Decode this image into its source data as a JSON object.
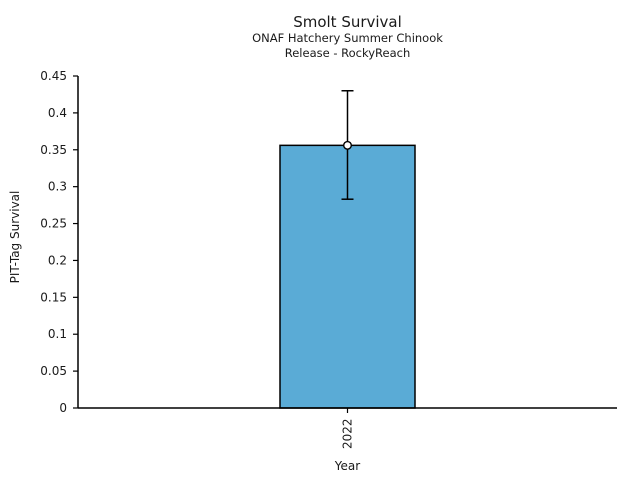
{
  "figure": {
    "background_color": "#ffffff",
    "text_color": "#1a1a1a"
  },
  "chart_data": {
    "type": "bar",
    "title": "Smolt Survival",
    "subtitle_lines": [
      "ONAF Hatchery Summer Chinook",
      "Release - RockyReach"
    ],
    "xlabel": "Year",
    "ylabel": "PIT-Tag Survival",
    "categories": [
      "2022"
    ],
    "values": [
      0.356
    ],
    "error_low": [
      0.283
    ],
    "error_high": [
      0.43
    ],
    "ylim": [
      0,
      0.45
    ],
    "yticks": [
      0,
      0.05,
      0.1,
      0.15,
      0.2,
      0.25,
      0.3,
      0.35,
      0.4,
      0.45
    ],
    "ytick_labels": [
      "0",
      "0.05",
      "0.1",
      "0.15",
      "0.2",
      "0.25",
      "0.3",
      "0.35",
      "0.4",
      "0.45"
    ],
    "xtick_rotation_deg": 90,
    "bar_color": "#5aabd6",
    "bar_edge_color": "#000000",
    "errorbar_color": "#000000",
    "marker": "open-circle",
    "marker_fill": "#ffffff",
    "grid": false,
    "legend": null,
    "visible_spines": [
      "left",
      "bottom"
    ]
  }
}
